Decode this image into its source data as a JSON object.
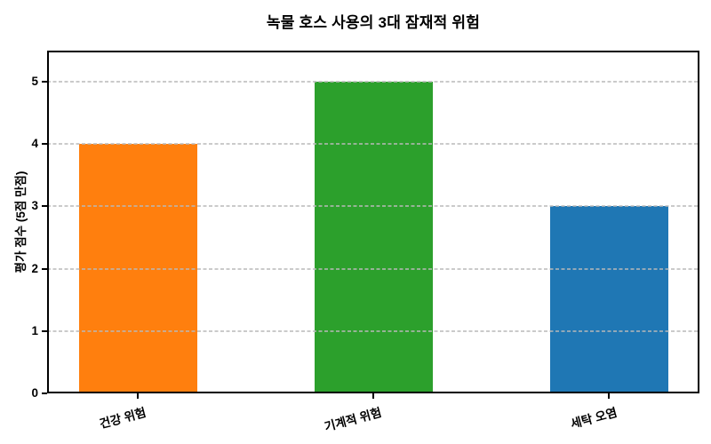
{
  "chart_data": {
    "type": "bar",
    "title": "녹물 호스 사용의 3대 잠재적 위험",
    "xlabel": "",
    "ylabel": "평가 점수 (5점 만점)",
    "categories": [
      "건강 위험",
      "기계적 위험",
      "세탁 오염"
    ],
    "values": [
      4,
      5,
      3
    ],
    "bar_colors": [
      "#ff7f0e",
      "#2ca02c",
      "#1f77b4"
    ],
    "ylim": [
      0,
      5.5
    ],
    "y_ticks": [
      0,
      1,
      2,
      3,
      4,
      5
    ],
    "grid": "horizontal-dashed",
    "grid_color": "#b9b9b9",
    "legend": "none",
    "x_tick_rotation_deg": 15,
    "spine_color": "#000000"
  }
}
